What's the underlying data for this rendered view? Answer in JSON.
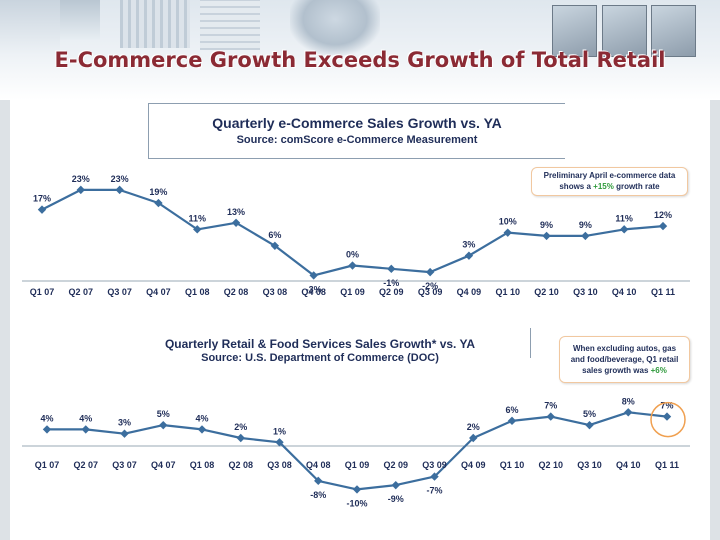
{
  "slide": {
    "title": "E-Commerce Growth Exceeds Growth of Total Retail"
  },
  "chart_data": [
    {
      "type": "line",
      "title": "Quarterly e-Commerce Sales Growth vs. YA",
      "subtitle": "Source: comScore e-Commerce Measurement",
      "categories": [
        "Q1 07",
        "Q2 07",
        "Q3 07",
        "Q4 07",
        "Q1 08",
        "Q2 08",
        "Q3 08",
        "Q4 08",
        "Q1 09",
        "Q2 09",
        "Q3 09",
        "Q4 09",
        "Q1 10",
        "Q2 10",
        "Q3 10",
        "Q4 10",
        "Q1 11"
      ],
      "values": [
        17,
        23,
        23,
        19,
        11,
        13,
        6,
        -3,
        0,
        -1,
        -2,
        3,
        10,
        9,
        9,
        11,
        12
      ],
      "value_labels": [
        "17%",
        "23%",
        "23%",
        "19%",
        "11%",
        "13%",
        "6%",
        "-3%",
        "0%",
        "-1%",
        "-2%",
        "3%",
        "10%",
        "9%",
        "9%",
        "11%",
        "12%"
      ],
      "ylim": [
        -5,
        26
      ],
      "color": "#3c6e9e",
      "annotation": {
        "line1": "Preliminary April e-commerce data",
        "line2_pre": "shows a ",
        "highlight": "+15%",
        "line2_post": " growth rate"
      }
    },
    {
      "type": "line",
      "title": "Quarterly Retail & Food Services Sales Growth* vs. YA",
      "subtitle": "Source: U.S. Department of Commerce (DOC)",
      "categories": [
        "Q1 07",
        "Q2 07",
        "Q3 07",
        "Q4 07",
        "Q1 08",
        "Q2 08",
        "Q3 08",
        "Q4 08",
        "Q1 09",
        "Q2 09",
        "Q3 09",
        "Q4 09",
        "Q1 10",
        "Q2 10",
        "Q3 10",
        "Q4 10",
        "Q1 11"
      ],
      "values": [
        4,
        4,
        3,
        5,
        4,
        2,
        1,
        -8,
        -10,
        -9,
        -7,
        2,
        6,
        7,
        5,
        8,
        7
      ],
      "value_labels": [
        "4%",
        "4%",
        "3%",
        "5%",
        "4%",
        "2%",
        "1%",
        "-8%",
        "-10%",
        "-9%",
        "-7%",
        "2%",
        "6%",
        "7%",
        "5%",
        "8%",
        "7%"
      ],
      "ylim": [
        -12,
        9
      ],
      "color": "#3c6e9e",
      "highlight_color": "#f0a050",
      "annotation": {
        "line1": "When excluding autos, gas",
        "line2": "and food/beverage, Q1 retail",
        "line3_pre": "sales growth was ",
        "highlight": "+6%"
      }
    }
  ]
}
